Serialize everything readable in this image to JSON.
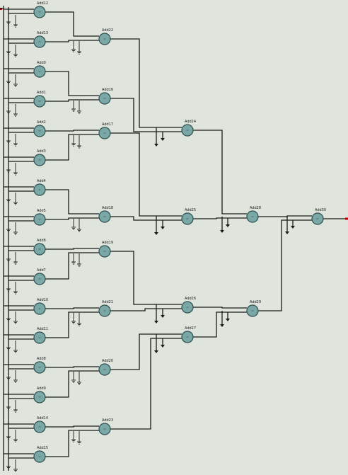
{
  "diagram": {
    "background": "#dfe5dd",
    "wire_color": "#1a1a1a",
    "node_fill": "#7aa8a6",
    "node_stroke": "#2f4f4f",
    "port_color": "#c00000",
    "adders": [
      {
        "id": "Add12",
        "label": "Add12"
      },
      {
        "id": "Add13",
        "label": "Add13"
      },
      {
        "id": "Add0",
        "label": "Add0"
      },
      {
        "id": "Add1",
        "label": "Add1"
      },
      {
        "id": "Add2",
        "label": "Add2"
      },
      {
        "id": "Add3",
        "label": "Add3"
      },
      {
        "id": "Add4",
        "label": "Add4"
      },
      {
        "id": "Add5",
        "label": "Add5"
      },
      {
        "id": "Add6",
        "label": "Add6"
      },
      {
        "id": "Add7",
        "label": "Add7"
      },
      {
        "id": "Add10",
        "label": "Add10"
      },
      {
        "id": "Add11",
        "label": "Add11"
      },
      {
        "id": "Add8",
        "label": "Add8"
      },
      {
        "id": "Add9",
        "label": "Add9"
      },
      {
        "id": "Add14",
        "label": "Add14"
      },
      {
        "id": "Add15",
        "label": "Add15"
      },
      {
        "id": "Add22",
        "label": "Add22"
      },
      {
        "id": "Add16",
        "label": "Add16"
      },
      {
        "id": "Add17",
        "label": "Add17"
      },
      {
        "id": "Add18",
        "label": "Add18"
      },
      {
        "id": "Add19",
        "label": "Add19"
      },
      {
        "id": "Add21",
        "label": "Add21"
      },
      {
        "id": "Add20",
        "label": "Add20"
      },
      {
        "id": "Add23",
        "label": "Add23"
      },
      {
        "id": "Add24",
        "label": "Add24"
      },
      {
        "id": "Add25",
        "label": "Add25"
      },
      {
        "id": "Add26",
        "label": "Add26"
      },
      {
        "id": "Add27",
        "label": "Add27"
      },
      {
        "id": "Add28",
        "label": "Add28"
      },
      {
        "id": "Add29",
        "label": "Add29"
      },
      {
        "id": "Add30",
        "label": "Add30"
      }
    ],
    "connections": [
      [
        "Add12",
        "Add22"
      ],
      [
        "Add13",
        "Add22"
      ],
      [
        "Add0",
        "Add16"
      ],
      [
        "Add1",
        "Add16"
      ],
      [
        "Add2",
        "Add17"
      ],
      [
        "Add3",
        "Add17"
      ],
      [
        "Add4",
        "Add18"
      ],
      [
        "Add5",
        "Add18"
      ],
      [
        "Add6",
        "Add19"
      ],
      [
        "Add7",
        "Add19"
      ],
      [
        "Add10",
        "Add21"
      ],
      [
        "Add11",
        "Add21"
      ],
      [
        "Add8",
        "Add20"
      ],
      [
        "Add9",
        "Add20"
      ],
      [
        "Add14",
        "Add23"
      ],
      [
        "Add15",
        "Add23"
      ],
      [
        "Add22",
        "Add24"
      ],
      [
        "Add16",
        "Add24"
      ],
      [
        "Add17",
        "Add25"
      ],
      [
        "Add18",
        "Add25"
      ],
      [
        "Add19",
        "Add26"
      ],
      [
        "Add21",
        "Add26"
      ],
      [
        "Add20",
        "Add27"
      ],
      [
        "Add23",
        "Add27"
      ],
      [
        "Add24",
        "Add28"
      ],
      [
        "Add25",
        "Add28"
      ],
      [
        "Add26",
        "Add29"
      ],
      [
        "Add27",
        "Add29"
      ],
      [
        "Add28",
        "Add30"
      ],
      [
        "Add29",
        "Add30"
      ]
    ]
  }
}
